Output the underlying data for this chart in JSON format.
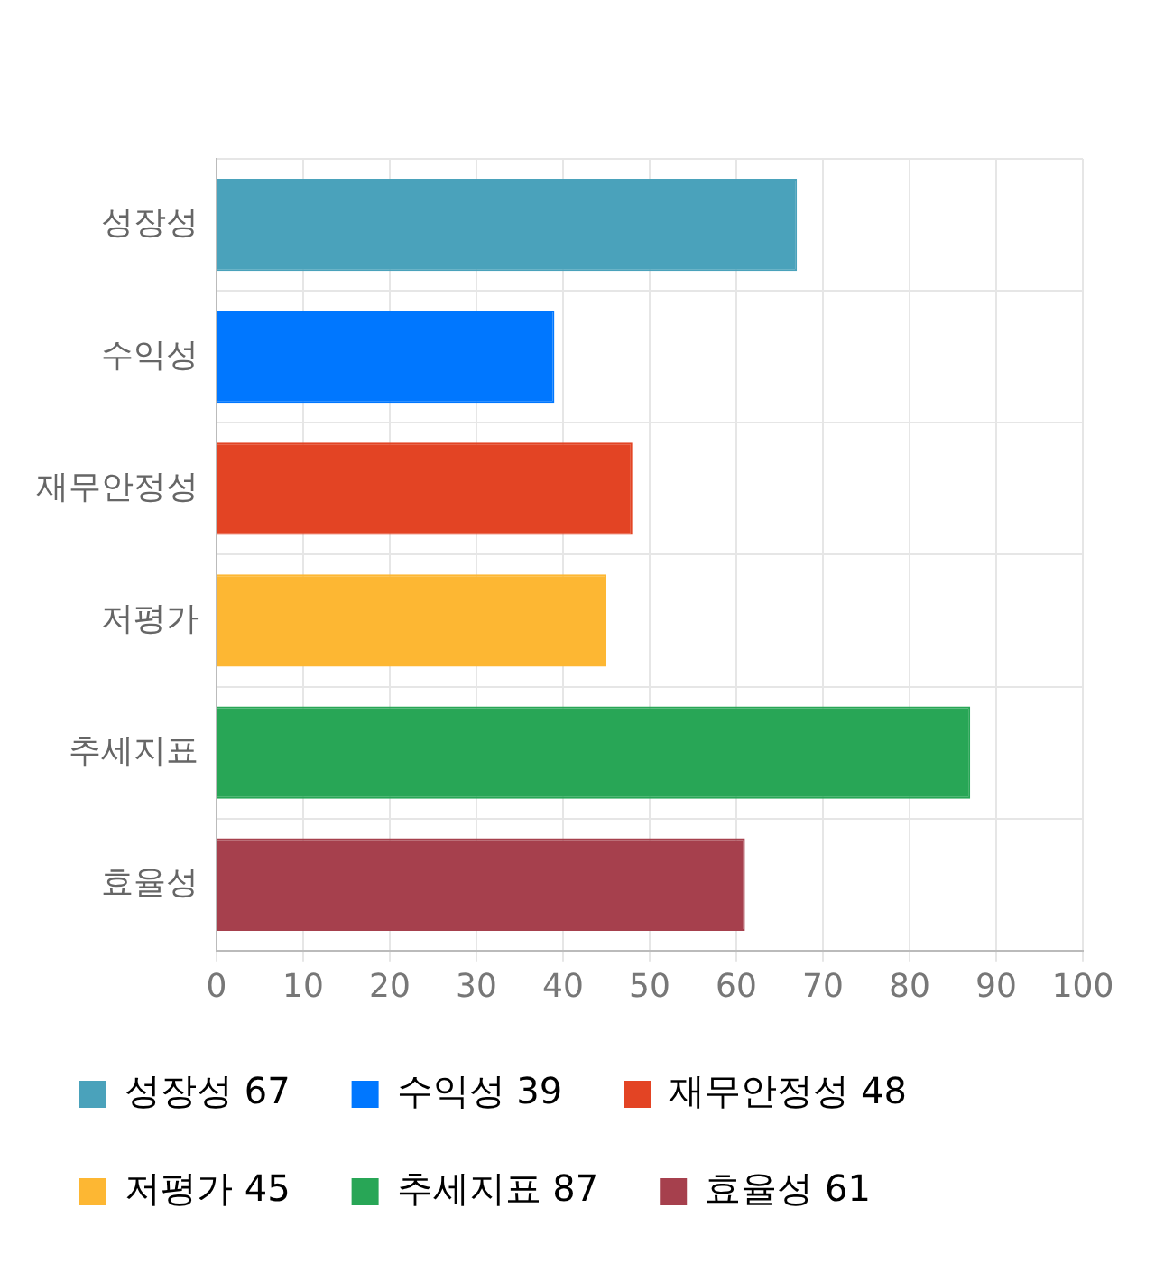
{
  "chart_data": {
    "type": "bar",
    "orientation": "horizontal",
    "stacked": true,
    "categories": [
      "성장성",
      "수익성",
      "재무안정성",
      "저평가",
      "추세지표",
      "효율성"
    ],
    "series": [
      {
        "name": "성장성 67",
        "color": "#4aa2bb",
        "values": [
          67,
          null,
          null,
          null,
          null,
          null
        ]
      },
      {
        "name": "수익성 39",
        "color": "#0077ff",
        "values": [
          null,
          39,
          null,
          null,
          null,
          null
        ]
      },
      {
        "name": "재무안정성 48",
        "color": "#e34424",
        "values": [
          null,
          null,
          48,
          null,
          null,
          null
        ]
      },
      {
        "name": "저평가 45",
        "color": "#fdb733",
        "values": [
          null,
          null,
          null,
          45,
          null,
          null
        ]
      },
      {
        "name": "추세지표 87",
        "color": "#28a656",
        "values": [
          null,
          null,
          null,
          null,
          87,
          null
        ]
      },
      {
        "name": "효율성 61",
        "color": "#a6404d",
        "values": [
          null,
          null,
          null,
          null,
          null,
          61
        ]
      }
    ],
    "xlim": [
      0,
      100
    ],
    "xticks": [
      0,
      10,
      20,
      30,
      40,
      50,
      60,
      70,
      80,
      90,
      100
    ],
    "grid": true,
    "legend": "bottom"
  }
}
